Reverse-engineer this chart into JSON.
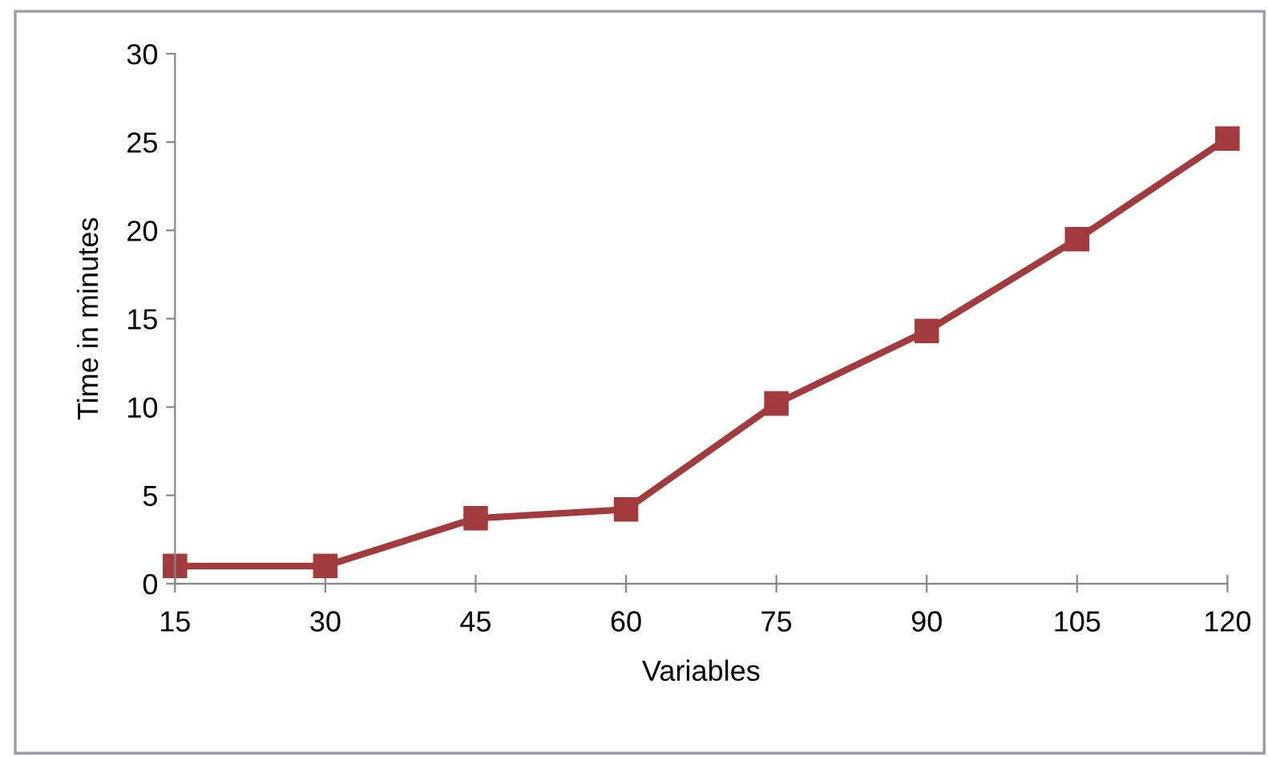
{
  "chart_data": {
    "type": "line",
    "xlabel": "Variables",
    "ylabel": "Time in minutes",
    "categories": [
      "15",
      "30",
      "45",
      "60",
      "75",
      "90",
      "105",
      "120"
    ],
    "series": [
      {
        "color": "#a23b3d",
        "values": [
          1.0,
          1.0,
          3.7,
          4.2,
          10.2,
          14.3,
          19.5,
          25.2
        ]
      }
    ],
    "ylim": [
      0,
      30
    ],
    "yticks": [
      0,
      5,
      10,
      15,
      20,
      25,
      30
    ],
    "grid": false,
    "marker": "square",
    "line_style": "solid"
  }
}
